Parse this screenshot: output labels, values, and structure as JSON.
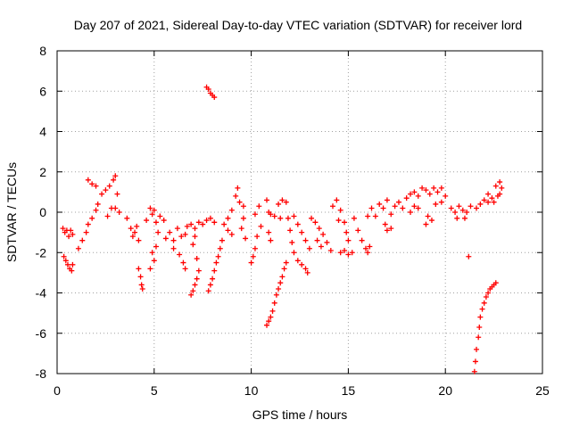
{
  "chart_data": {
    "type": "scatter",
    "title": "Day 207 of 2021, Sidereal Day-to-day VTEC variation (SDTVAR) for receiver lord",
    "xlabel": "GPS time / hours",
    "ylabel": "SDTVAR / TECUs",
    "xlim": [
      0,
      25
    ],
    "ylim": [
      -8,
      8
    ],
    "xticks": [
      "0",
      "5",
      "10",
      "15",
      "20",
      "25"
    ],
    "yticks": [
      "-8",
      "-6",
      "-4",
      "-2",
      "0",
      "2",
      "4",
      "6",
      "8"
    ],
    "grid": true,
    "marker": "+",
    "color": "#ff0000",
    "series": [
      {
        "name": "SDTVAR",
        "points": [
          [
            0.3,
            -0.8
          ],
          [
            0.4,
            -1.0
          ],
          [
            0.5,
            -0.9
          ],
          [
            0.6,
            -1.2
          ],
          [
            0.7,
            -0.9
          ],
          [
            0.8,
            -1.1
          ],
          [
            0.35,
            -2.2
          ],
          [
            0.45,
            -2.4
          ],
          [
            0.55,
            -2.6
          ],
          [
            0.65,
            -2.8
          ],
          [
            0.75,
            -2.9
          ],
          [
            0.8,
            -2.6
          ],
          [
            1.1,
            -1.8
          ],
          [
            1.3,
            -1.4
          ],
          [
            1.5,
            -1.0
          ],
          [
            1.6,
            -0.6
          ],
          [
            1.8,
            -0.3
          ],
          [
            2.0,
            0.1
          ],
          [
            2.1,
            0.4
          ],
          [
            1.6,
            1.6
          ],
          [
            1.8,
            1.4
          ],
          [
            2.0,
            1.3
          ],
          [
            2.3,
            0.9
          ],
          [
            2.5,
            1.1
          ],
          [
            2.7,
            1.3
          ],
          [
            2.9,
            1.6
          ],
          [
            3.0,
            1.8
          ],
          [
            3.1,
            0.9
          ],
          [
            3.0,
            0.2
          ],
          [
            3.2,
            0.0
          ],
          [
            2.6,
            -0.2
          ],
          [
            2.8,
            0.2
          ],
          [
            3.6,
            -0.3
          ],
          [
            3.8,
            -0.8
          ],
          [
            3.9,
            -1.2
          ],
          [
            4.0,
            -1.0
          ],
          [
            4.2,
            -1.4
          ],
          [
            4.1,
            -0.7
          ],
          [
            4.2,
            -2.8
          ],
          [
            4.3,
            -3.2
          ],
          [
            4.35,
            -3.6
          ],
          [
            4.4,
            -3.8
          ],
          [
            4.6,
            -0.4
          ],
          [
            4.8,
            0.2
          ],
          [
            4.9,
            -0.1
          ],
          [
            5.0,
            0.1
          ],
          [
            5.1,
            -0.5
          ],
          [
            5.3,
            -0.2
          ],
          [
            5.2,
            -1.0
          ],
          [
            5.5,
            -0.4
          ],
          [
            5.6,
            -1.3
          ],
          [
            4.9,
            -2.0
          ],
          [
            5.0,
            -2.4
          ],
          [
            4.8,
            -2.8
          ],
          [
            5.1,
            -1.7
          ],
          [
            5.8,
            -1.0
          ],
          [
            6.0,
            -1.4
          ],
          [
            6.2,
            -0.8
          ],
          [
            6.4,
            -1.2
          ],
          [
            6.6,
            -1.1
          ],
          [
            6.7,
            -0.7
          ],
          [
            6.0,
            -1.8
          ],
          [
            6.3,
            -2.1
          ],
          [
            6.5,
            -2.5
          ],
          [
            6.6,
            -2.8
          ],
          [
            6.9,
            -0.6
          ],
          [
            7.1,
            -0.8
          ],
          [
            7.3,
            -0.5
          ],
          [
            7.5,
            -0.6
          ],
          [
            7.7,
            -0.4
          ],
          [
            7.9,
            -0.3
          ],
          [
            8.1,
            -0.5
          ],
          [
            7.1,
            -1.2
          ],
          [
            7.0,
            -1.6
          ],
          [
            7.2,
            -2.3
          ],
          [
            7.3,
            -2.9
          ],
          [
            7.2,
            -3.3
          ],
          [
            7.1,
            -3.6
          ],
          [
            7.0,
            -3.9
          ],
          [
            6.9,
            -4.1
          ],
          [
            7.8,
            -3.9
          ],
          [
            7.9,
            -3.6
          ],
          [
            8.0,
            -3.3
          ],
          [
            8.1,
            -2.9
          ],
          [
            8.2,
            -2.5
          ],
          [
            8.3,
            -2.2
          ],
          [
            8.4,
            -1.8
          ],
          [
            8.5,
            -1.4
          ],
          [
            7.7,
            6.2
          ],
          [
            7.8,
            6.1
          ],
          [
            7.9,
            5.9
          ],
          [
            8.0,
            5.8
          ],
          [
            8.1,
            5.7
          ],
          [
            8.6,
            -0.6
          ],
          [
            8.8,
            -0.3
          ],
          [
            9.0,
            0.1
          ],
          [
            9.2,
            0.8
          ],
          [
            9.3,
            1.2
          ],
          [
            9.4,
            0.5
          ],
          [
            8.8,
            -0.9
          ],
          [
            9.0,
            -1.1
          ],
          [
            9.6,
            0.3
          ],
          [
            9.6,
            -0.3
          ],
          [
            9.5,
            -0.8
          ],
          [
            9.7,
            -1.3
          ],
          [
            10.2,
            -0.1
          ],
          [
            10.4,
            0.3
          ],
          [
            10.5,
            -0.7
          ],
          [
            10.3,
            -1.2
          ],
          [
            10.2,
            -1.8
          ],
          [
            10.1,
            -2.2
          ],
          [
            10.0,
            -2.5
          ],
          [
            10.8,
            0.6
          ],
          [
            10.9,
            0.0
          ],
          [
            11.0,
            -0.1
          ],
          [
            11.2,
            -0.2
          ],
          [
            11.4,
            0.4
          ],
          [
            11.6,
            0.6
          ],
          [
            11.8,
            0.5
          ],
          [
            11.5,
            -0.3
          ],
          [
            10.8,
            -5.6
          ],
          [
            10.9,
            -5.4
          ],
          [
            11.0,
            -5.2
          ],
          [
            11.1,
            -4.9
          ],
          [
            11.2,
            -4.5
          ],
          [
            11.3,
            -4.1
          ],
          [
            11.4,
            -3.8
          ],
          [
            11.5,
            -3.5
          ],
          [
            11.6,
            -3.2
          ],
          [
            11.7,
            -2.8
          ],
          [
            11.8,
            -2.5
          ],
          [
            10.9,
            -1.0
          ],
          [
            11.0,
            -1.4
          ],
          [
            11.9,
            -0.3
          ],
          [
            12.0,
            -0.9
          ],
          [
            12.1,
            -1.5
          ],
          [
            12.2,
            -2.0
          ],
          [
            12.4,
            -2.4
          ],
          [
            12.6,
            -2.6
          ],
          [
            12.8,
            -2.8
          ],
          [
            12.9,
            -3.0
          ],
          [
            12.2,
            -0.2
          ],
          [
            12.4,
            -0.6
          ],
          [
            12.6,
            -1.0
          ],
          [
            12.8,
            -1.4
          ],
          [
            13.0,
            -1.8
          ],
          [
            13.1,
            -0.3
          ],
          [
            13.3,
            -0.5
          ],
          [
            13.5,
            -0.8
          ],
          [
            13.7,
            -1.1
          ],
          [
            13.9,
            -1.5
          ],
          [
            14.1,
            -1.9
          ],
          [
            13.4,
            -1.4
          ],
          [
            13.6,
            -1.7
          ],
          [
            14.2,
            0.3
          ],
          [
            14.4,
            0.6
          ],
          [
            14.5,
            -0.4
          ],
          [
            14.6,
            0.1
          ],
          [
            14.8,
            -0.5
          ],
          [
            14.9,
            -1.0
          ],
          [
            15.0,
            -1.4
          ],
          [
            14.6,
            -2.0
          ],
          [
            14.8,
            -1.9
          ],
          [
            15.0,
            -2.1
          ],
          [
            15.2,
            -2.0
          ],
          [
            15.3,
            -0.3
          ],
          [
            15.5,
            -0.9
          ],
          [
            15.7,
            -1.4
          ],
          [
            15.9,
            -1.8
          ],
          [
            16.0,
            -2.0
          ],
          [
            16.1,
            -1.7
          ],
          [
            16.0,
            -0.2
          ],
          [
            16.2,
            0.2
          ],
          [
            16.4,
            -0.2
          ],
          [
            16.6,
            0.4
          ],
          [
            16.8,
            0.2
          ],
          [
            17.0,
            0.6
          ],
          [
            17.2,
            -0.1
          ],
          [
            16.9,
            -0.6
          ],
          [
            17.0,
            -0.9
          ],
          [
            17.2,
            -0.8
          ],
          [
            17.4,
            0.3
          ],
          [
            17.6,
            0.5
          ],
          [
            17.8,
            0.2
          ],
          [
            18.0,
            0.7
          ],
          [
            18.2,
            0.9
          ],
          [
            18.4,
            1.0
          ],
          [
            18.6,
            0.8
          ],
          [
            18.8,
            1.2
          ],
          [
            18.2,
            0.0
          ],
          [
            18.4,
            0.3
          ],
          [
            18.6,
            0.2
          ],
          [
            19.0,
            1.1
          ],
          [
            19.2,
            0.9
          ],
          [
            19.4,
            1.2
          ],
          [
            19.6,
            1.0
          ],
          [
            19.8,
            1.2
          ],
          [
            20.0,
            0.8
          ],
          [
            19.5,
            0.4
          ],
          [
            19.8,
            0.5
          ],
          [
            19.1,
            -0.2
          ],
          [
            19.3,
            -0.4
          ],
          [
            19.0,
            -0.6
          ],
          [
            20.3,
            0.2
          ],
          [
            20.5,
            0.0
          ],
          [
            20.7,
            0.3
          ],
          [
            20.9,
            0.1
          ],
          [
            21.1,
            0.0
          ],
          [
            21.3,
            0.3
          ],
          [
            20.6,
            -0.3
          ],
          [
            21.0,
            -0.3
          ],
          [
            21.2,
            -2.2
          ],
          [
            21.6,
            0.2
          ],
          [
            21.8,
            0.4
          ],
          [
            22.0,
            0.6
          ],
          [
            22.2,
            0.5
          ],
          [
            22.4,
            0.7
          ],
          [
            22.5,
            0.5
          ],
          [
            22.7,
            0.8
          ],
          [
            22.9,
            1.2
          ],
          [
            22.8,
            0.9
          ],
          [
            22.2,
            0.9
          ],
          [
            21.5,
            -7.9
          ],
          [
            21.55,
            -7.4
          ],
          [
            21.6,
            -6.8
          ],
          [
            21.7,
            -6.2
          ],
          [
            21.75,
            -5.7
          ],
          [
            21.8,
            -5.2
          ],
          [
            21.9,
            -4.8
          ],
          [
            22.0,
            -4.5
          ],
          [
            22.1,
            -4.2
          ],
          [
            22.2,
            -4.0
          ],
          [
            22.3,
            -3.8
          ],
          [
            22.4,
            -3.7
          ],
          [
            22.5,
            -3.6
          ],
          [
            22.6,
            -3.5
          ],
          [
            22.6,
            1.3
          ],
          [
            22.8,
            1.5
          ]
        ]
      }
    ]
  }
}
